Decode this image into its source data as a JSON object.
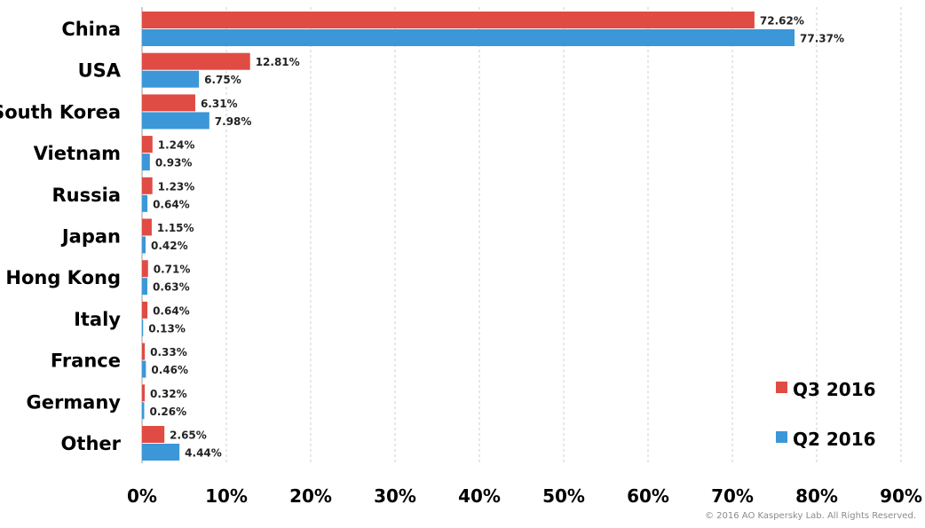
{
  "chart_data": {
    "type": "bar",
    "orientation": "horizontal",
    "categories": [
      "China",
      "USA",
      "South Korea",
      "Vietnam",
      "Russia",
      "Japan",
      "Hong Kong",
      "Italy",
      "France",
      "Germany",
      "Other"
    ],
    "series": [
      {
        "name": "Q3 2016",
        "color": "#e04b43",
        "values": [
          72.62,
          12.81,
          6.31,
          1.24,
          1.23,
          1.15,
          0.71,
          0.64,
          0.33,
          0.32,
          2.65
        ],
        "labels": [
          "72.62%",
          "12.81%",
          "6.31%",
          "1.24%",
          "1.23%",
          "1.15%",
          "0.71%",
          "0.64%",
          "0.33%",
          "0.32%",
          "2.65%"
        ]
      },
      {
        "name": "Q2 2016",
        "color": "#3b97d7",
        "values": [
          77.37,
          6.75,
          7.98,
          0.93,
          0.64,
          0.42,
          0.63,
          0.13,
          0.46,
          0.26,
          4.44
        ],
        "labels": [
          "77.37%",
          "6.75%",
          "7.98%",
          "0.93%",
          "0.64%",
          "0.42%",
          "0.63%",
          "0.13%",
          "0.46%",
          "0.26%",
          "4.44%"
        ]
      }
    ],
    "xlim": [
      0,
      90
    ],
    "xticks": [
      "0%",
      "10%",
      "20%",
      "30%",
      "40%",
      "50%",
      "60%",
      "70%",
      "80%",
      "90%"
    ],
    "grid": true,
    "legend_position": "bottom-right"
  },
  "copyright": "© 2016 AO Kaspersky Lab. All Rights Reserved."
}
